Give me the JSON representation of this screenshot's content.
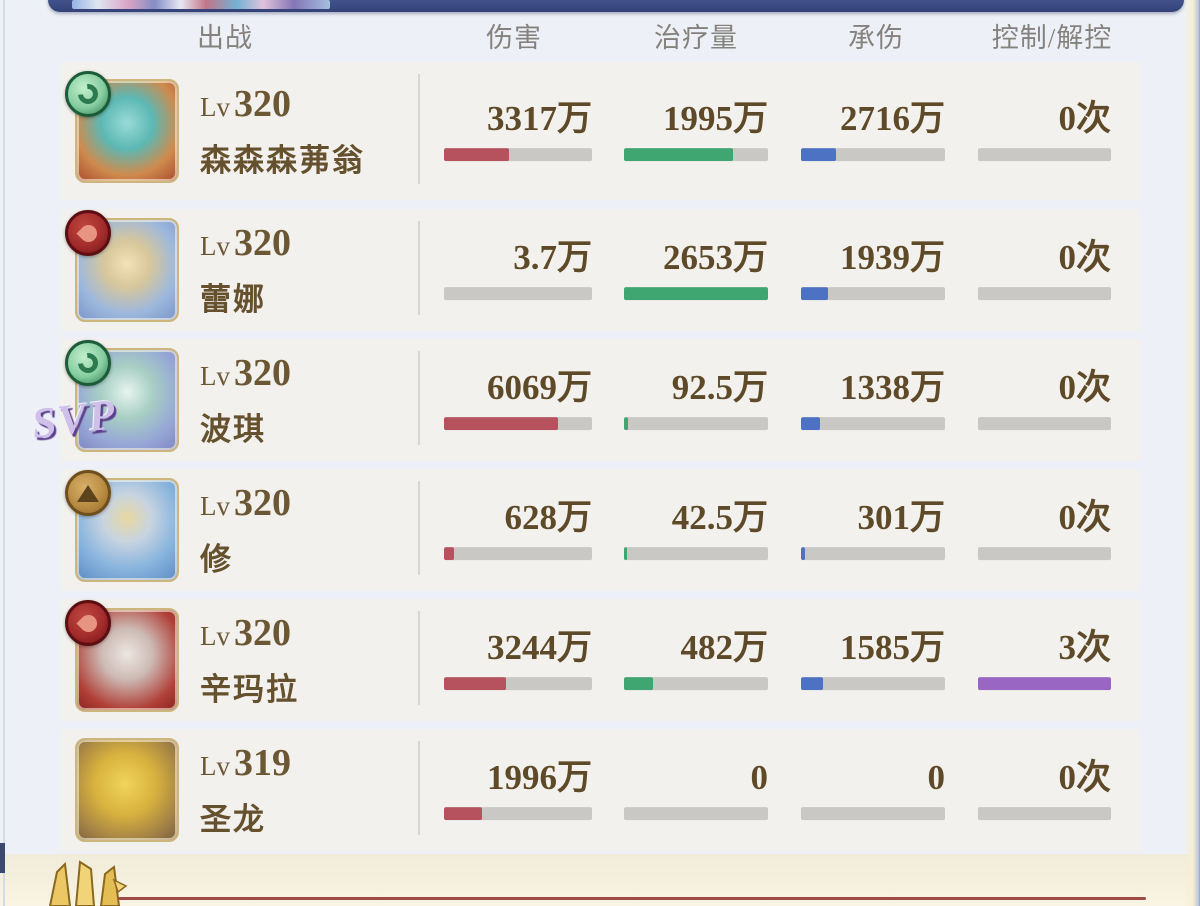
{
  "header": {
    "col_deploy": "出战",
    "col_damage": "伤害",
    "col_healing": "治疗量",
    "col_taken": "承伤",
    "col_control": "控制/解控"
  },
  "rows": [
    {
      "level_prefix": "Lv",
      "level": "320",
      "name": "森森森茀翁",
      "element": "wind",
      "portrait": "teal-girl",
      "damage": {
        "value": "3317万",
        "pct": 44
      },
      "healing": {
        "value": "1995万",
        "pct": 76
      },
      "taken": {
        "value": "2716万",
        "pct": 24
      },
      "control": {
        "value": "0次",
        "pct": 0
      }
    },
    {
      "level_prefix": "Lv",
      "level": "320",
      "name": "蕾娜",
      "element": "fire",
      "portrait": "lena",
      "damage": {
        "value": "3.7万",
        "pct": 0
      },
      "healing": {
        "value": "2653万",
        "pct": 100
      },
      "taken": {
        "value": "1939万",
        "pct": 19
      },
      "control": {
        "value": "0次",
        "pct": 0
      }
    },
    {
      "level_prefix": "Lv",
      "level": "320",
      "name": "波琪",
      "element": "wind",
      "portrait": "poki",
      "svp_label": "SVP",
      "damage": {
        "value": "6069万",
        "pct": 77
      },
      "healing": {
        "value": "92.5万",
        "pct": 3
      },
      "taken": {
        "value": "1338万",
        "pct": 13
      },
      "control": {
        "value": "0次",
        "pct": 0
      }
    },
    {
      "level_prefix": "Lv",
      "level": "320",
      "name": "修",
      "element": "earth",
      "portrait": "shu",
      "damage": {
        "value": "628万",
        "pct": 7
      },
      "healing": {
        "value": "42.5万",
        "pct": 2
      },
      "taken": {
        "value": "301万",
        "pct": 3
      },
      "control": {
        "value": "0次",
        "pct": 0
      }
    },
    {
      "level_prefix": "Lv",
      "level": "320",
      "name": "辛玛拉",
      "element": "fire",
      "portrait": "sinmara",
      "damage": {
        "value": "3244万",
        "pct": 42
      },
      "healing": {
        "value": "482万",
        "pct": 20
      },
      "taken": {
        "value": "1585万",
        "pct": 15
      },
      "control": {
        "value": "3次",
        "pct": 100
      }
    },
    {
      "level_prefix": "Lv",
      "level": "319",
      "name": "圣龙",
      "element": "none",
      "portrait": "dragon",
      "damage": {
        "value": "1996万",
        "pct": 26
      },
      "healing": {
        "value": "0",
        "pct": 0
      },
      "taken": {
        "value": "0",
        "pct": 0
      },
      "control": {
        "value": "0次",
        "pct": 0
      }
    }
  ],
  "colors": {
    "page_bg": "#edf1f7",
    "card_bg": "#f3f1ed",
    "bar_track": "#c9c8c5",
    "damage_bar": "#b5525e",
    "healing_bar": "#3fa571",
    "taken_bar": "#4d72c4",
    "control_bar": "#9a66c4",
    "value_text": "#5e4a28",
    "header_text": "#85827d",
    "top_bar": "#3e4e86",
    "accent_line": "#9e4b45"
  }
}
